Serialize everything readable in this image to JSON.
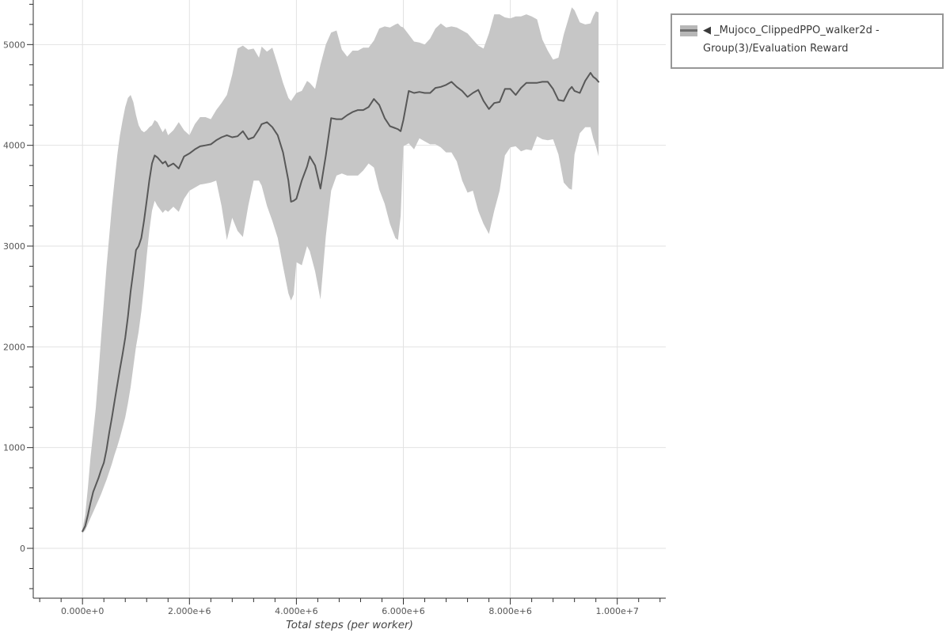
{
  "legend": {
    "entry_label": "◀ _Mujoco_ClippedPPO_walker2d - Group(3)/Evaluation Reward",
    "swatch": {
      "band_color": "#b7b7b7",
      "line_color": "#6f6f6f"
    }
  },
  "colors": {
    "band_fill": "#c6c6c6",
    "mean_line": "#585858",
    "gridline": "#e2e2e2",
    "axis": "#2f2f2f",
    "tick_label": "#555555",
    "legend_border": "#979797",
    "background": "#ffffff"
  },
  "chart_data": {
    "type": "line",
    "title": "",
    "xlabel": "Total steps (per worker)",
    "ylabel": "",
    "grid": true,
    "legend_position": "outside-top-right",
    "ylim": [
      -495,
      5440
    ],
    "xlim_e6": [
      -0.92,
      10.92
    ],
    "x_ticks": [
      {
        "e6": 0,
        "label": "0.000e+0"
      },
      {
        "e6": 2,
        "label": "2.000e+6"
      },
      {
        "e6": 4,
        "label": "4.000e+6"
      },
      {
        "e6": 6,
        "label": "6.000e+6"
      },
      {
        "e6": 8,
        "label": "8.000e+6"
      },
      {
        "e6": 10,
        "label": "1.000e+7"
      }
    ],
    "y_ticks": [
      {
        "v": 0,
        "label": "0"
      },
      {
        "v": 1000,
        "label": "1000"
      },
      {
        "v": 2000,
        "label": "2000"
      },
      {
        "v": 3000,
        "label": "3000"
      },
      {
        "v": 4000,
        "label": "4000"
      },
      {
        "v": 5000,
        "label": "5000"
      }
    ],
    "minor_ticks": {
      "x_step_e6": 0.4,
      "x_range_e6": [
        -0.8,
        10.8
      ],
      "y_step": 200,
      "y_range": [
        -400,
        5400
      ]
    },
    "series": [
      {
        "name": "◀_Mujoco_ClippedPPO_walker2d - Group(3)/Evaluation Reward",
        "note": "points are [steps_in_millions, mean, band_lower, band_upper]",
        "points": [
          [
            0.0,
            170,
            150,
            190
          ],
          [
            0.05,
            220,
            180,
            330
          ],
          [
            0.1,
            330,
            240,
            600
          ],
          [
            0.15,
            450,
            300,
            900
          ],
          [
            0.2,
            560,
            360,
            1150
          ],
          [
            0.25,
            630,
            420,
            1400
          ],
          [
            0.3,
            700,
            480,
            1750
          ],
          [
            0.35,
            780,
            540,
            2100
          ],
          [
            0.4,
            850,
            610,
            2450
          ],
          [
            0.45,
            980,
            680,
            2800
          ],
          [
            0.5,
            1150,
            760,
            3100
          ],
          [
            0.55,
            1300,
            840,
            3400
          ],
          [
            0.6,
            1460,
            930,
            3650
          ],
          [
            0.65,
            1620,
            1010,
            3900
          ],
          [
            0.7,
            1780,
            1100,
            4100
          ],
          [
            0.75,
            1930,
            1200,
            4250
          ],
          [
            0.8,
            2090,
            1300,
            4380
          ],
          [
            0.85,
            2300,
            1440,
            4470
          ],
          [
            0.9,
            2550,
            1600,
            4500
          ],
          [
            0.95,
            2750,
            1800,
            4430
          ],
          [
            1.0,
            2960,
            2000,
            4300
          ],
          [
            1.05,
            3000,
            2150,
            4200
          ],
          [
            1.1,
            3080,
            2350,
            4150
          ],
          [
            1.15,
            3250,
            2600,
            4130
          ],
          [
            1.2,
            3450,
            2900,
            4150
          ],
          [
            1.25,
            3650,
            3150,
            4180
          ],
          [
            1.3,
            3820,
            3350,
            4200
          ],
          [
            1.35,
            3900,
            3450,
            4250
          ],
          [
            1.4,
            3880,
            3400,
            4230
          ],
          [
            1.5,
            3820,
            3330,
            4130
          ],
          [
            1.55,
            3840,
            3360,
            4170
          ],
          [
            1.6,
            3790,
            3340,
            4100
          ],
          [
            1.7,
            3820,
            3390,
            4150
          ],
          [
            1.8,
            3770,
            3340,
            4230
          ],
          [
            1.9,
            3890,
            3470,
            4150
          ],
          [
            2.0,
            3920,
            3550,
            4100
          ],
          [
            2.1,
            3960,
            3580,
            4210
          ],
          [
            2.2,
            3990,
            3610,
            4280
          ],
          [
            2.3,
            4000,
            3620,
            4280
          ],
          [
            2.4,
            4010,
            3630,
            4260
          ],
          [
            2.5,
            4050,
            3650,
            4350
          ],
          [
            2.6,
            4080,
            3400,
            4420
          ],
          [
            2.7,
            4100,
            3060,
            4500
          ],
          [
            2.8,
            4080,
            3280,
            4700
          ],
          [
            2.9,
            4090,
            3150,
            4960
          ],
          [
            3.0,
            4140,
            3090,
            4990
          ],
          [
            3.1,
            4060,
            3400,
            4950
          ],
          [
            3.2,
            4080,
            3650,
            4960
          ],
          [
            3.3,
            4160,
            3650,
            4870
          ],
          [
            3.35,
            4210,
            3600,
            4980
          ],
          [
            3.45,
            4230,
            3400,
            4930
          ],
          [
            3.55,
            4180,
            3250,
            4970
          ],
          [
            3.65,
            4100,
            3080,
            4800
          ],
          [
            3.75,
            3930,
            2800,
            4620
          ],
          [
            3.85,
            3650,
            2530,
            4470
          ],
          [
            3.9,
            3440,
            2460,
            4440
          ],
          [
            3.95,
            3450,
            2520,
            4480
          ],
          [
            4.0,
            3470,
            2840,
            4520
          ],
          [
            4.1,
            3650,
            2810,
            4540
          ],
          [
            4.2,
            3790,
            3000,
            4640
          ],
          [
            4.25,
            3890,
            2950,
            4620
          ],
          [
            4.35,
            3800,
            2750,
            4560
          ],
          [
            4.45,
            3570,
            2470,
            4800
          ],
          [
            4.55,
            3900,
            3100,
            5000
          ],
          [
            4.65,
            4270,
            3550,
            5120
          ],
          [
            4.75,
            4260,
            3700,
            5140
          ],
          [
            4.85,
            4260,
            3720,
            4950
          ],
          [
            4.95,
            4300,
            3700,
            4880
          ],
          [
            5.05,
            4330,
            3700,
            4940
          ],
          [
            5.15,
            4350,
            3700,
            4940
          ],
          [
            5.25,
            4350,
            3750,
            4970
          ],
          [
            5.35,
            4380,
            3820,
            4970
          ],
          [
            5.45,
            4460,
            3780,
            5040
          ],
          [
            5.55,
            4400,
            3560,
            5160
          ],
          [
            5.65,
            4270,
            3420,
            5180
          ],
          [
            5.75,
            4190,
            3220,
            5170
          ],
          [
            5.85,
            4170,
            3080,
            5200
          ],
          [
            5.9,
            4160,
            3060,
            5210
          ],
          [
            5.95,
            4140,
            3300,
            5180
          ],
          [
            6.0,
            4250,
            3990,
            5170
          ],
          [
            6.1,
            4540,
            4020,
            5100
          ],
          [
            6.2,
            4520,
            3960,
            5030
          ],
          [
            6.3,
            4530,
            4070,
            5020
          ],
          [
            6.4,
            4520,
            4040,
            5000
          ],
          [
            6.5,
            4520,
            4010,
            5060
          ],
          [
            6.6,
            4570,
            4010,
            5160
          ],
          [
            6.7,
            4580,
            3980,
            5210
          ],
          [
            6.8,
            4600,
            3930,
            5170
          ],
          [
            6.9,
            4630,
            3930,
            5180
          ],
          [
            7.0,
            4580,
            3840,
            5170
          ],
          [
            7.1,
            4540,
            3650,
            5140
          ],
          [
            7.2,
            4480,
            3530,
            5110
          ],
          [
            7.3,
            4520,
            3550,
            5050
          ],
          [
            7.4,
            4550,
            3350,
            4990
          ],
          [
            7.5,
            4440,
            3220,
            4960
          ],
          [
            7.6,
            4360,
            3120,
            5110
          ],
          [
            7.7,
            4420,
            3350,
            5300
          ],
          [
            7.8,
            4430,
            3550,
            5300
          ],
          [
            7.9,
            4560,
            3900,
            5270
          ],
          [
            8.0,
            4560,
            3980,
            5260
          ],
          [
            8.1,
            4500,
            3990,
            5280
          ],
          [
            8.2,
            4570,
            3940,
            5280
          ],
          [
            8.3,
            4620,
            3960,
            5300
          ],
          [
            8.4,
            4620,
            3950,
            5280
          ],
          [
            8.5,
            4620,
            4090,
            5250
          ],
          [
            8.6,
            4630,
            4060,
            5050
          ],
          [
            8.7,
            4630,
            4050,
            4940
          ],
          [
            8.8,
            4560,
            4060,
            4850
          ],
          [
            8.9,
            4450,
            3910,
            4870
          ],
          [
            9.0,
            4440,
            3630,
            5100
          ],
          [
            9.1,
            4550,
            3570,
            5280
          ],
          [
            9.15,
            4580,
            3560,
            5370
          ],
          [
            9.2,
            4540,
            3910,
            5340
          ],
          [
            9.3,
            4520,
            4120,
            5220
          ],
          [
            9.4,
            4640,
            4180,
            5200
          ],
          [
            9.5,
            4720,
            4180,
            5210
          ],
          [
            9.55,
            4680,
            4070,
            5280
          ],
          [
            9.6,
            4660,
            3990,
            5330
          ],
          [
            9.65,
            4630,
            3890,
            5320
          ]
        ]
      }
    ]
  }
}
